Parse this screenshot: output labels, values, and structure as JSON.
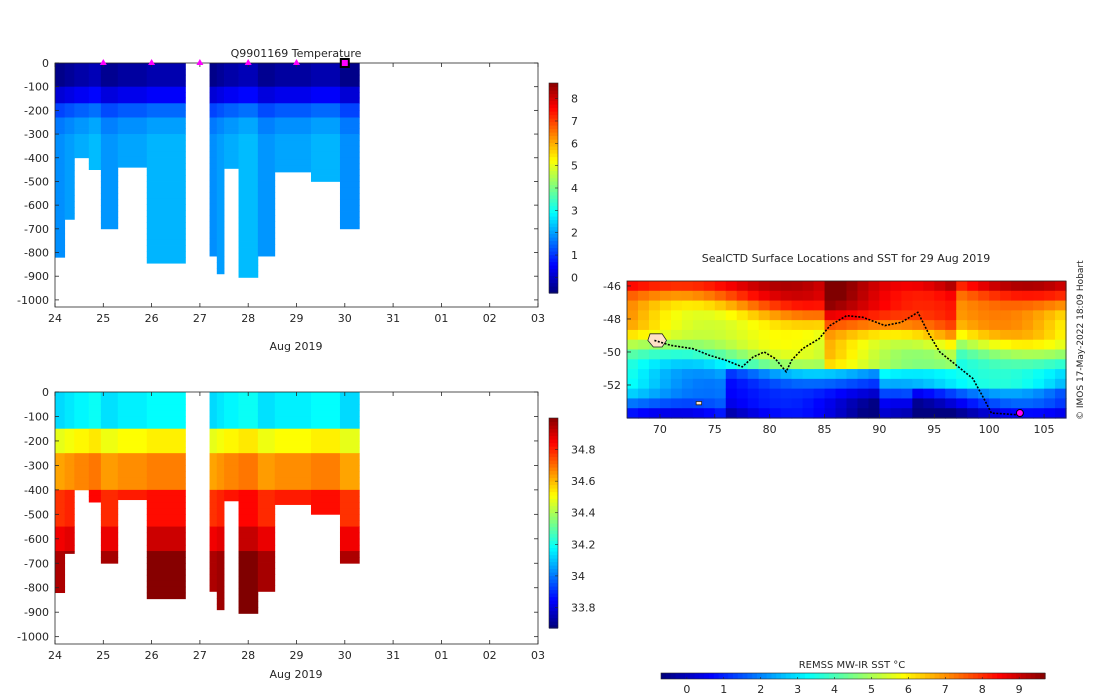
{
  "chart_data": [
    {
      "type": "heatmap",
      "title": "Q9901169  Temperature",
      "xlabel": "Aug 2019",
      "ylabel": "",
      "xlim": [
        "2019-08-24",
        "2019-09-03"
      ],
      "ylim": [
        -1030,
        0
      ],
      "xticks": [
        "24",
        "25",
        "26",
        "27",
        "28",
        "29",
        "30",
        "31",
        "01",
        "02",
        "03"
      ],
      "yticks": [
        0,
        -100,
        -200,
        -300,
        -400,
        -500,
        -600,
        -700,
        -800,
        -900,
        -1000
      ],
      "colorbar": {
        "ticks": [
          0,
          1,
          2,
          3,
          4,
          5,
          6,
          7,
          8
        ],
        "range": [
          -0.7,
          8.7
        ],
        "colormap": "jet"
      },
      "surface_markers": [
        "2019-08-25",
        "2019-08-26",
        "2019-08-27",
        "2019-08-28",
        "2019-08-29"
      ],
      "current_profile": "2019-08-30",
      "profiles": [
        {
          "date": "2019-08-24.0",
          "end": "2019-08-24.2",
          "max_depth": 820
        },
        {
          "date": "2019-08-24.2",
          "end": "2019-08-24.4",
          "max_depth": 660
        },
        {
          "date": "2019-08-24.4",
          "end": "2019-08-24.7",
          "max_depth": 400
        },
        {
          "date": "2019-08-24.7",
          "end": "2019-08-24.95",
          "max_depth": 450
        },
        {
          "date": "2019-08-24.95",
          "end": "2019-08-25.3",
          "max_depth": 700
        },
        {
          "date": "2019-08-25.3",
          "end": "2019-08-25.9",
          "max_depth": 440
        },
        {
          "date": "2019-08-25.9",
          "end": "2019-08-26.7",
          "max_depth": 845
        },
        {
          "date": "2019-08-27.2",
          "end": "2019-08-27.35",
          "max_depth": 815
        },
        {
          "date": "2019-08-27.35",
          "end": "2019-08-27.5",
          "max_depth": 890
        },
        {
          "date": "2019-08-27.5",
          "end": "2019-08-27.8",
          "max_depth": 445
        },
        {
          "date": "2019-08-27.8",
          "end": "2019-08-28.2",
          "max_depth": 905
        },
        {
          "date": "2019-08-28.2",
          "end": "2019-08-28.55",
          "max_depth": 815
        },
        {
          "date": "2019-08-28.55",
          "end": "2019-08-29.3",
          "max_depth": 460
        },
        {
          "date": "2019-08-29.3",
          "end": "2019-08-29.9",
          "max_depth": 500
        },
        {
          "date": "2019-08-29.9",
          "end": "2019-08-30.3",
          "max_depth": 700
        }
      ],
      "profile_levels": [
        {
          "depth_top": 0,
          "depth_bottom": 100,
          "value": -0.4
        },
        {
          "depth_top": 100,
          "depth_bottom": 170,
          "value": 0.3
        },
        {
          "depth_top": 170,
          "depth_bottom": 230,
          "value": 1.3
        },
        {
          "depth_top": 230,
          "depth_bottom": 300,
          "value": 1.8
        },
        {
          "depth_top": 300,
          "depth_bottom": 1000,
          "value": 2.0
        }
      ]
    },
    {
      "type": "heatmap",
      "title": "",
      "xlabel": "Aug 2019",
      "ylabel": "",
      "xlim": [
        "2019-08-24",
        "2019-09-03"
      ],
      "ylim": [
        -1030,
        0
      ],
      "xticks": [
        "24",
        "25",
        "26",
        "27",
        "28",
        "29",
        "30",
        "31",
        "01",
        "02",
        "03"
      ],
      "yticks": [
        0,
        -100,
        -200,
        -300,
        -400,
        -500,
        -600,
        -700,
        -800,
        -900,
        -1000
      ],
      "colorbar": {
        "ticks": [
          33.8,
          34,
          34.2,
          34.4,
          34.6,
          34.8
        ],
        "tick_labels": [
          "33.8",
          "34",
          "34.2",
          "34.4",
          "34.6",
          "34.8"
        ],
        "range": [
          33.67,
          35.0
        ],
        "colormap": "jet"
      },
      "profile_levels": [
        {
          "depth_top": 0,
          "depth_bottom": 150,
          "value": 34.15
        },
        {
          "depth_top": 150,
          "depth_bottom": 250,
          "value": 34.5
        },
        {
          "depth_top": 250,
          "depth_bottom": 400,
          "value": 34.65
        },
        {
          "depth_top": 400,
          "depth_bottom": 550,
          "value": 34.8
        },
        {
          "depth_top": 550,
          "depth_bottom": 650,
          "value": 34.88
        },
        {
          "depth_top": 650,
          "depth_bottom": 1000,
          "value": 34.97
        }
      ]
    },
    {
      "type": "map",
      "title": "SealCTD Surface Locations and SST for 29 Aug 2019",
      "xlim": [
        67,
        107
      ],
      "ylim": [
        -54,
        -45.7
      ],
      "xticks": [
        70,
        75,
        80,
        85,
        90,
        95,
        100,
        105
      ],
      "yticks": [
        -46,
        -48,
        -50,
        -52
      ],
      "colorbar_label": "REMSS MW-IR SST °C",
      "colorbar_ticks": [
        0,
        1,
        2,
        3,
        4,
        5,
        6,
        7,
        8,
        9
      ],
      "colorbar_range": [
        -0.7,
        9.7
      ],
      "track": [
        [
          69.5,
          -49.3
        ],
        [
          71,
          -49.6
        ],
        [
          73,
          -49.8
        ],
        [
          74.5,
          -50.2
        ],
        [
          76,
          -50.5
        ],
        [
          77.5,
          -50.9
        ],
        [
          78.5,
          -50.3
        ],
        [
          79.5,
          -50
        ],
        [
          80.5,
          -50.4
        ],
        [
          81.5,
          -51.2
        ],
        [
          82,
          -50.5
        ],
        [
          83,
          -49.8
        ],
        [
          84.5,
          -49.2
        ],
        [
          85.5,
          -48.4
        ],
        [
          87,
          -47.8
        ],
        [
          88.5,
          -47.9
        ],
        [
          90.5,
          -48.4
        ],
        [
          92,
          -48.2
        ],
        [
          93.5,
          -47.6
        ],
        [
          94.5,
          -48.9
        ],
        [
          95.5,
          -50
        ],
        [
          97,
          -50.8
        ],
        [
          98.5,
          -51.6
        ],
        [
          99.5,
          -52.8
        ],
        [
          100.2,
          -53.7
        ],
        [
          102.5,
          -53.8
        ]
      ],
      "current_location": [
        102.8,
        -53.7
      ]
    }
  ],
  "credit": "© IMOS 17-May-2022 18:09 Hobart",
  "colors": {
    "axis": "#262626",
    "marker_magenta": "#ff00ff",
    "land_fill": "#ffe2c6"
  }
}
